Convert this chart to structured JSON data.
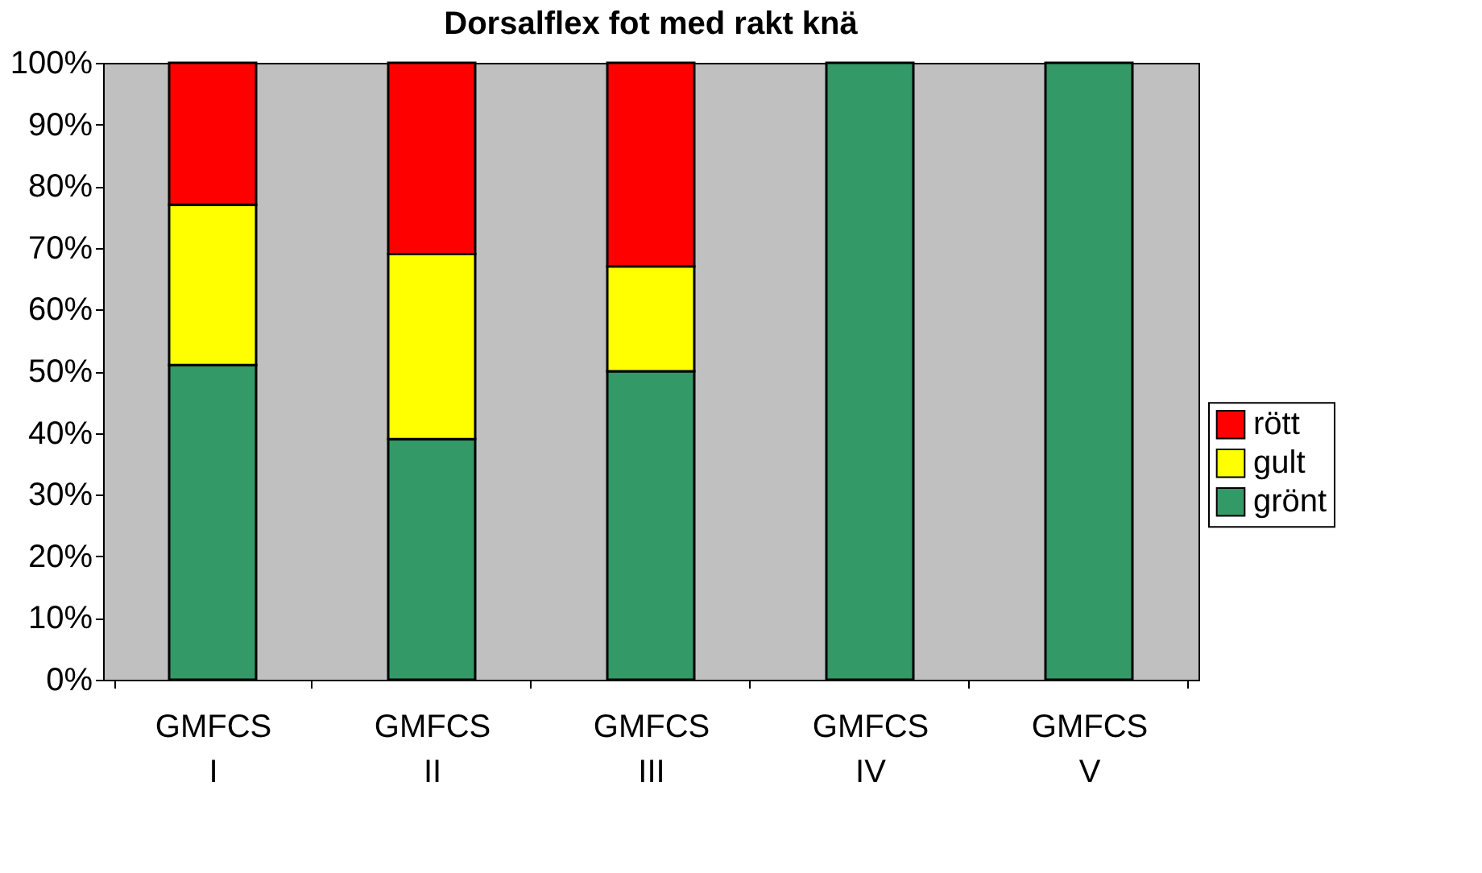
{
  "chart_data": {
    "type": "bar",
    "title": "Dorsalflex fot med rakt knä",
    "stacked": true,
    "categories": [
      "GMFCS I",
      "GMFCS II",
      "GMFCS III",
      "GMFCS IV",
      "GMFCS V"
    ],
    "series": [
      {
        "name": "grönt",
        "color": "#339966",
        "values": [
          51,
          39,
          50,
          100,
          100
        ]
      },
      {
        "name": "gult",
        "color": "#ffff00",
        "values": [
          26,
          30,
          17,
          null,
          null
        ]
      },
      {
        "name": "rött",
        "color": "#ff0000",
        "values": [
          23,
          31,
          33,
          null,
          null
        ]
      }
    ],
    "ylim": [
      0,
      100
    ],
    "yticks": [
      {
        "value": 0,
        "label": "0%"
      },
      {
        "value": 10,
        "label": "10%"
      },
      {
        "value": 20,
        "label": "20%"
      },
      {
        "value": 30,
        "label": "30%"
      },
      {
        "value": 40,
        "label": "40%"
      },
      {
        "value": 50,
        "label": "50%"
      },
      {
        "value": 60,
        "label": "60%"
      },
      {
        "value": 70,
        "label": "70%"
      },
      {
        "value": 80,
        "label": "80%"
      },
      {
        "value": 90,
        "label": "90%"
      },
      {
        "value": 100,
        "label": "100%"
      }
    ],
    "grid": false,
    "legend": "right"
  }
}
